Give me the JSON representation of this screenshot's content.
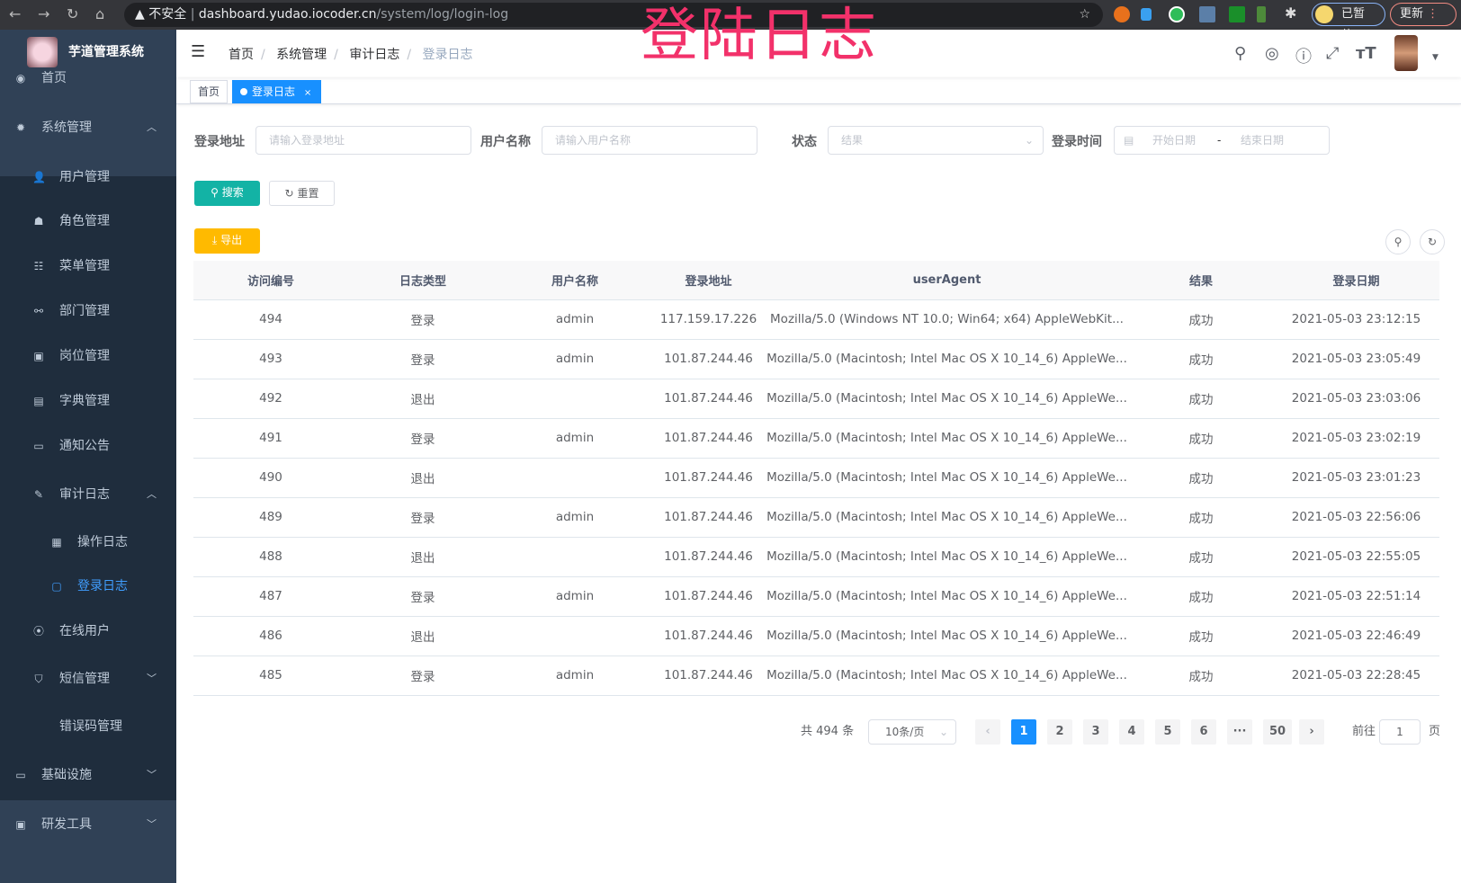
{
  "browser": {
    "insecure_label": "不安全",
    "url_host": "dashboard.yudao.iocoder.cn",
    "url_path": "/system/log/login-log",
    "paused_label": "已暂停",
    "update_label": "更新"
  },
  "overlay_title": "登陆日志",
  "sidebar": {
    "brand": "芋道管理系统",
    "items": [
      {
        "label": "首页",
        "icon": "dashboard-icon"
      },
      {
        "label": "系统管理",
        "icon": "gear-icon"
      },
      {
        "label": "用户管理",
        "icon": "user-icon"
      },
      {
        "label": "角色管理",
        "icon": "role-icon"
      },
      {
        "label": "菜单管理",
        "icon": "menu-tree-icon"
      },
      {
        "label": "部门管理",
        "icon": "org-tree-icon"
      },
      {
        "label": "岗位管理",
        "icon": "post-icon"
      },
      {
        "label": "字典管理",
        "icon": "dict-icon"
      },
      {
        "label": "通知公告",
        "icon": "message-icon"
      },
      {
        "label": "审计日志",
        "icon": "edit-icon"
      },
      {
        "label": "操作日志",
        "icon": "form-icon"
      },
      {
        "label": "登录日志",
        "icon": "login-log-icon"
      },
      {
        "label": "在线用户",
        "icon": "online-icon"
      },
      {
        "label": "短信管理",
        "icon": "shield-icon"
      },
      {
        "label": "错误码管理",
        "icon": "code-icon"
      },
      {
        "label": "基础设施",
        "icon": "monitor-icon"
      },
      {
        "label": "研发工具",
        "icon": "tool-icon"
      }
    ]
  },
  "breadcrumb": [
    "首页",
    "系统管理",
    "审计日志",
    "登录日志"
  ],
  "tags": [
    {
      "label": "首页"
    },
    {
      "label": "登录日志",
      "close": "×"
    }
  ],
  "filters": {
    "ip_label": "登录地址",
    "ip_placeholder": "请输入登录地址",
    "user_label": "用户名称",
    "user_placeholder": "请输入用户名称",
    "status_label": "状态",
    "status_placeholder": "结果",
    "time_label": "登录时间",
    "start_placeholder": "开始日期",
    "range_sep": "-",
    "end_placeholder": "结束日期",
    "search": "搜索",
    "reset": "重置"
  },
  "export_label": "导出",
  "table": {
    "columns": [
      "访问编号",
      "日志类型",
      "用户名称",
      "登录地址",
      "userAgent",
      "结果",
      "登录日期"
    ],
    "rows": [
      [
        "494",
        "登录",
        "admin",
        "117.159.17.226",
        "Mozilla/5.0 (Windows NT 10.0; Win64; x64) AppleWebKit...",
        "成功",
        "2021-05-03 23:12:15"
      ],
      [
        "493",
        "登录",
        "admin",
        "101.87.244.46",
        "Mozilla/5.0 (Macintosh; Intel Mac OS X 10_14_6) AppleWe...",
        "成功",
        "2021-05-03 23:05:49"
      ],
      [
        "492",
        "退出",
        "",
        "101.87.244.46",
        "Mozilla/5.0 (Macintosh; Intel Mac OS X 10_14_6) AppleWe...",
        "成功",
        "2021-05-03 23:03:06"
      ],
      [
        "491",
        "登录",
        "admin",
        "101.87.244.46",
        "Mozilla/5.0 (Macintosh; Intel Mac OS X 10_14_6) AppleWe...",
        "成功",
        "2021-05-03 23:02:19"
      ],
      [
        "490",
        "退出",
        "",
        "101.87.244.46",
        "Mozilla/5.0 (Macintosh; Intel Mac OS X 10_14_6) AppleWe...",
        "成功",
        "2021-05-03 23:01:23"
      ],
      [
        "489",
        "登录",
        "admin",
        "101.87.244.46",
        "Mozilla/5.0 (Macintosh; Intel Mac OS X 10_14_6) AppleWe...",
        "成功",
        "2021-05-03 22:56:06"
      ],
      [
        "488",
        "退出",
        "",
        "101.87.244.46",
        "Mozilla/5.0 (Macintosh; Intel Mac OS X 10_14_6) AppleWe...",
        "成功",
        "2021-05-03 22:55:05"
      ],
      [
        "487",
        "登录",
        "admin",
        "101.87.244.46",
        "Mozilla/5.0 (Macintosh; Intel Mac OS X 10_14_6) AppleWe...",
        "成功",
        "2021-05-03 22:51:14"
      ],
      [
        "486",
        "退出",
        "",
        "101.87.244.46",
        "Mozilla/5.0 (Macintosh; Intel Mac OS X 10_14_6) AppleWe...",
        "成功",
        "2021-05-03 22:46:49"
      ],
      [
        "485",
        "登录",
        "admin",
        "101.87.244.46",
        "Mozilla/5.0 (Macintosh; Intel Mac OS X 10_14_6) AppleWe...",
        "成功",
        "2021-05-03 22:28:45"
      ]
    ]
  },
  "pagination": {
    "total": "共 494 条",
    "page_size": "10条/页",
    "pages": [
      "1",
      "2",
      "3",
      "4",
      "5",
      "6",
      "···",
      "50"
    ],
    "current": "1",
    "goto_prefix": "前往",
    "goto_value": "1",
    "goto_suffix": "页"
  },
  "colors": {
    "sidebar": "#304156",
    "submenu": "#1f2d3d",
    "primary": "#1890ff",
    "search": "#13b3a5",
    "export": "#ffba00",
    "overlay": "#f2316a"
  }
}
